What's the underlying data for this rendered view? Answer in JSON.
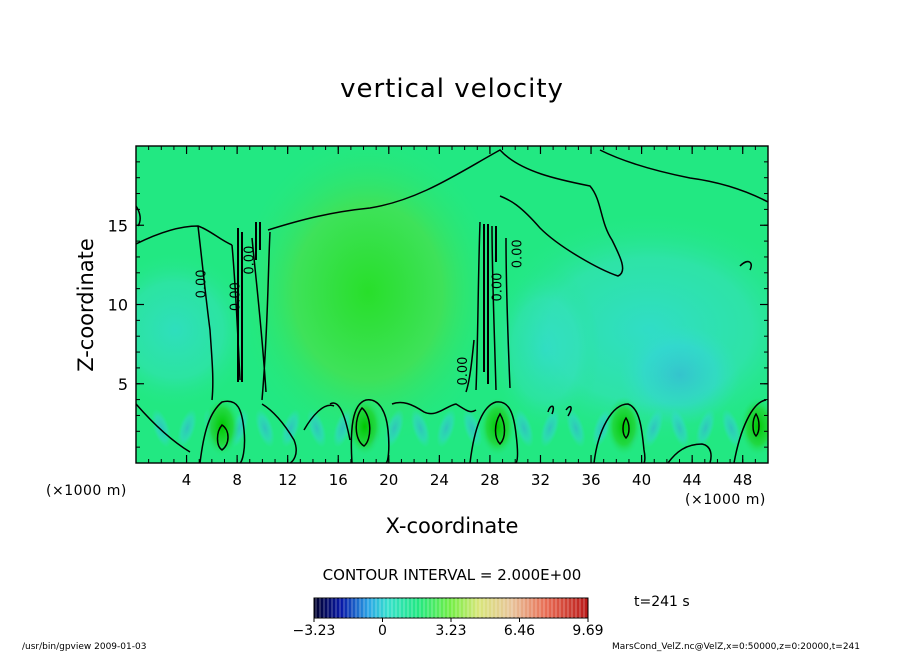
{
  "chart_data": {
    "type": "heatmap",
    "title": "vertical velocity",
    "xlabel": "X-coordinate",
    "ylabel": "Z-coordinate",
    "x_unit": "(×1000 m)",
    "xlim": [
      0,
      50
    ],
    "ylim": [
      0,
      20
    ],
    "x_ticks": [
      4,
      8,
      12,
      16,
      20,
      24,
      28,
      32,
      36,
      40,
      44,
      48
    ],
    "y_ticks": [
      5,
      10,
      15
    ],
    "contour_labels": [
      {
        "x": 5.5,
        "z": 11.3,
        "text": "0.00"
      },
      {
        "x": 8.2,
        "z": 10.5,
        "text": "0.00"
      },
      {
        "x": 9.3,
        "z": 12.8,
        "text": "0.00"
      },
      {
        "x": 26.2,
        "z": 5.8,
        "text": "0.00"
      },
      {
        "x": 28.9,
        "z": 11.1,
        "text": "0.00"
      },
      {
        "x": 30.5,
        "z": 13.2,
        "text": "0.00"
      }
    ],
    "updraft_cores": [
      6.8,
      18.1,
      28.6,
      38.6,
      49.2
    ],
    "contour_interval": "CONTOUR INTERVAL = 2.000E+00",
    "colorbar": {
      "min": -3.23,
      "max": 9.69,
      "tick_values": [
        -3.23,
        0,
        3.23,
        6.46,
        9.69
      ],
      "tick_labels": [
        "−3.23",
        "0",
        "3.23",
        "6.46",
        "9.69"
      ]
    },
    "time_label": "t=241 s"
  },
  "colors": {
    "background_field": "#22e882",
    "updraft": "#0fd52a",
    "downdraft": "#38dcd8",
    "axis": "#000000"
  },
  "footer": {
    "left": "/usr/bin/gpview   2009-01-03",
    "right": "MarsCond_VelZ.nc@VelZ,x=0:50000,z=0:20000,t=241"
  }
}
